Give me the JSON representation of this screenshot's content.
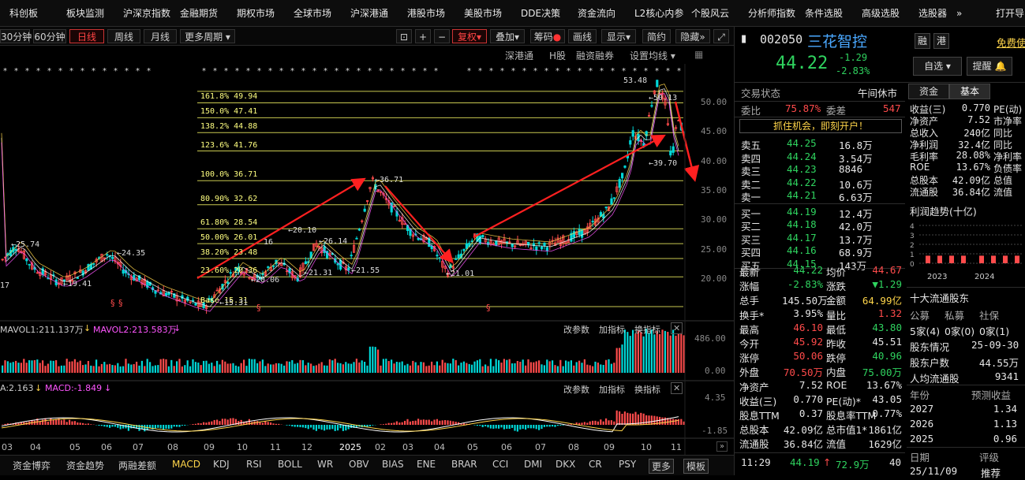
{
  "top_nav": [
    "科创板",
    "板块监测",
    "沪深京指数",
    "金融期货",
    "期权市场",
    "全球市场",
    "沪深港通",
    "港股市场",
    "美股市场",
    "DDE决策",
    "资金流向",
    "L2核心内参",
    "个股风云",
    "分析师指数",
    "条件选股",
    "高级选股",
    "选股器",
    "»",
    "打开导"
  ],
  "toolbar": {
    "periods": [
      "30分钟",
      "60分钟",
      "日线",
      "周线",
      "月线",
      "更多周期"
    ],
    "active_period": "日线",
    "tools": [
      "复权",
      "叠加",
      "筹码",
      "画线",
      "显示",
      "简约",
      "隐藏"
    ],
    "icons": [
      "lock-icon",
      "zoom-in-icon",
      "zoom-out-icon",
      "expand-icon"
    ]
  },
  "sub_bar": [
    "深港通",
    "H股",
    "融资融券",
    "设置均线"
  ],
  "price_axis": [
    "50.00",
    "45.00",
    "40.00",
    "35.00",
    "30.00",
    "25.00",
    "20.00"
  ],
  "fib_levels": [
    {
      "label": "161.8% 49.94",
      "price": 49.94
    },
    {
      "label": "150.0% 47.41",
      "price": 47.41
    },
    {
      "label": "138.2% 44.88",
      "price": 44.88
    },
    {
      "label": "123.6% 41.76",
      "price": 41.76
    },
    {
      "label": "100.0% 36.71",
      "price": 36.71
    },
    {
      "label": "80.90% 32.62",
      "price": 32.62
    },
    {
      "label": "61.80% 28.54",
      "price": 28.54
    },
    {
      "label": "50.00% 26.01",
      "price": 26.01
    },
    {
      "label": "38.20% 23.48",
      "price": 23.48
    },
    {
      "label": "23.60% 20.36",
      "price": 20.36
    },
    {
      "label": "Base 15.31",
      "price": 15.31
    }
  ],
  "price_marks": [
    "25.74",
    "19.41",
    "24.35",
    "20.10",
    "21.31",
    "26.14",
    "21.55",
    "20.06",
    "36.71",
    "21.01",
    "53.48",
    "50.13",
    "39.70",
    "15.31",
    "17",
    "16"
  ],
  "volume_panel": {
    "mavol1": "MAVOL1:211.137万",
    "mavol2": "MAVOL2:213.583万",
    "axis": [
      "486.00",
      "0.00"
    ],
    "actions": [
      "改参数",
      "加指标",
      "换指标"
    ]
  },
  "macd_panel": {
    "a": "A:2.163",
    "macd": "MACD:-1.849",
    "axis": [
      "4.35",
      "-1.85"
    ],
    "actions": [
      "改参数",
      "加指标",
      "换指标"
    ]
  },
  "time_axis": [
    "03",
    "04",
    "05",
    "06",
    "07",
    "08",
    "09",
    "10",
    "11",
    "12",
    "2025",
    "02",
    "03",
    "04",
    "05",
    "06",
    "07",
    "08",
    "09",
    "10",
    "11"
  ],
  "bottom_tabs": [
    "资金博弈",
    "资金趋势",
    "两融差额",
    "MACD",
    "KDJ",
    "RSI",
    "BOLL",
    "WR",
    "OBV",
    "BIAS",
    "ENE",
    "BRAR",
    "CCI",
    "DMI",
    "DKX",
    "CR",
    "PSY",
    "更多",
    "模板"
  ],
  "active_tab": "MACD",
  "stock": {
    "code": "002050",
    "name": "三花智控",
    "price": "44.22",
    "change": "-1.29",
    "pct": "-2.83%",
    "buttons": [
      "融",
      "港"
    ],
    "free": "免费使",
    "watch": "自选",
    "remind": "提醒",
    "status_label": "交易状态",
    "status": "午间休市",
    "weibi_label": "委比",
    "weibi": "75.87%",
    "weicha_label": "委差",
    "weicha": "547",
    "ad": "抓住机会，即刻开户！"
  },
  "order_book": {
    "asks": [
      {
        "label": "卖五",
        "price": "44.25",
        "vol": "16.8万"
      },
      {
        "label": "卖四",
        "price": "44.24",
        "vol": "3.54万"
      },
      {
        "label": "卖三",
        "price": "44.23",
        "vol": "8846"
      },
      {
        "label": "卖二",
        "price": "44.22",
        "vol": "10.6万"
      },
      {
        "label": "卖一",
        "price": "44.21",
        "vol": "6.63万"
      }
    ],
    "bids": [
      {
        "label": "买一",
        "price": "44.19",
        "vol": "12.4万"
      },
      {
        "label": "买二",
        "price": "44.18",
        "vol": "42.0万"
      },
      {
        "label": "买三",
        "price": "44.17",
        "vol": "13.7万"
      },
      {
        "label": "买四",
        "price": "44.16",
        "vol": "68.9万"
      },
      {
        "label": "买五",
        "price": "44.15",
        "vol": "143万"
      }
    ]
  },
  "quote_stats": [
    {
      "l1": "最新",
      "v1": "44.22",
      "c1": "grn",
      "l2": "均价",
      "v2": "44.67",
      "c2": "red"
    },
    {
      "l1": "涨幅",
      "v1": "-2.83%",
      "c1": "grn",
      "l2": "涨跌",
      "v2": "▼1.29",
      "c2": "grn"
    },
    {
      "l1": "总手",
      "v1": "145.50万",
      "c1": "wht",
      "l2": "金额",
      "v2": "64.99亿",
      "c2": "yel"
    },
    {
      "l1": "换手*",
      "v1": "3.95%",
      "c1": "wht",
      "l2": "量比",
      "v2": "1.32",
      "c2": "red"
    },
    {
      "l1": "最高",
      "v1": "46.10",
      "c1": "red",
      "l2": "最低",
      "v2": "43.80",
      "c2": "grn"
    },
    {
      "l1": "今开",
      "v1": "45.92",
      "c1": "red",
      "l2": "昨收",
      "v2": "45.51",
      "c2": "wht"
    },
    {
      "l1": "涨停",
      "v1": "50.06",
      "c1": "red",
      "l2": "跌停",
      "v2": "40.96",
      "c2": "grn"
    },
    {
      "l1": "外盘",
      "v1": "70.50万",
      "c1": "red",
      "l2": "内盘",
      "v2": "75.00万",
      "c2": "grn"
    },
    {
      "l1": "净资产",
      "v1": "7.52",
      "c1": "wht",
      "l2": "ROE",
      "v2": "13.67%",
      "c2": "wht"
    },
    {
      "l1": "收益(三)",
      "v1": "0.770",
      "c1": "wht",
      "l2": "PE(动)*",
      "v2": "43.05",
      "c2": "wht"
    },
    {
      "l1": "股息TTM",
      "v1": "0.37",
      "c1": "wht",
      "l2": "股息率TTM",
      "v2": "0.77%",
      "c2": "wht"
    },
    {
      "l1": "总股本",
      "v1": "42.09亿",
      "c1": "wht",
      "l2": "总市值1*",
      "v2": "1861亿",
      "c2": "wht"
    },
    {
      "l1": "流通股",
      "v1": "36.84亿",
      "c1": "wht",
      "l2": "流值",
      "v2": "1629亿",
      "c2": "wht"
    }
  ],
  "tick": {
    "time": "11:29",
    "price": "44.19",
    "arrow": "↑",
    "vol": "72.9万",
    "count": "40"
  },
  "fund_tabs": [
    "资金",
    "基本"
  ],
  "fundamentals": [
    {
      "l1": "收益(三)",
      "v1": "0.770",
      "l2": "PE(动)"
    },
    {
      "l1": "净资产",
      "v1": "7.52",
      "l2": "市净率"
    },
    {
      "l1": "总收入",
      "v1": "240亿",
      "l2": "同比"
    },
    {
      "l1": "净利润",
      "v1": "32.4亿",
      "l2": "同比"
    },
    {
      "l1": "毛利率",
      "v1": "28.08%",
      "l2": "净利率"
    },
    {
      "l1": "ROE",
      "v1": "13.67%",
      "l2": "负债率"
    },
    {
      "l1": "总股本",
      "v1": "42.09亿",
      "l2": "总值"
    },
    {
      "l1": "流通股",
      "v1": "36.84亿",
      "l2": "流值"
    }
  ],
  "profit_trend": {
    "title": "利润趋势(十亿)",
    "axis": [
      "4",
      "3",
      "2",
      "1",
      "0"
    ],
    "years": [
      "2023",
      "2024"
    ],
    "values": [
      0.8,
      0.8,
      0.8,
      0.8,
      0.8,
      0.8,
      0.8,
      0.8
    ]
  },
  "holders": {
    "title": "十大流通股东",
    "headers": [
      "公募",
      "私募",
      "社保"
    ],
    "counts": [
      "5家(4)",
      "0家(0)",
      "0家(1)"
    ],
    "rows": [
      {
        "l": "股东情况",
        "v": "25-09-30"
      },
      {
        "l": "股东户数",
        "v": "44.55万"
      },
      {
        "l": "人均流通股",
        "v": "9341"
      }
    ]
  },
  "forecast": {
    "headers": [
      "年份",
      "预测收益"
    ],
    "rows": [
      {
        "y": "2027",
        "v": "1.34"
      },
      {
        "y": "2026",
        "v": "1.13"
      },
      {
        "y": "2025",
        "v": "0.96"
      }
    ]
  },
  "rating": {
    "headers": [
      "日期",
      "评级"
    ],
    "row": {
      "d": "25/11/09",
      "v": "推荐"
    }
  },
  "colors": {
    "up": "#ff4b4b",
    "down": "#2fd35f",
    "fib": "#ffff80",
    "accent": "#ffd54a",
    "arrow": "#ff2020"
  }
}
